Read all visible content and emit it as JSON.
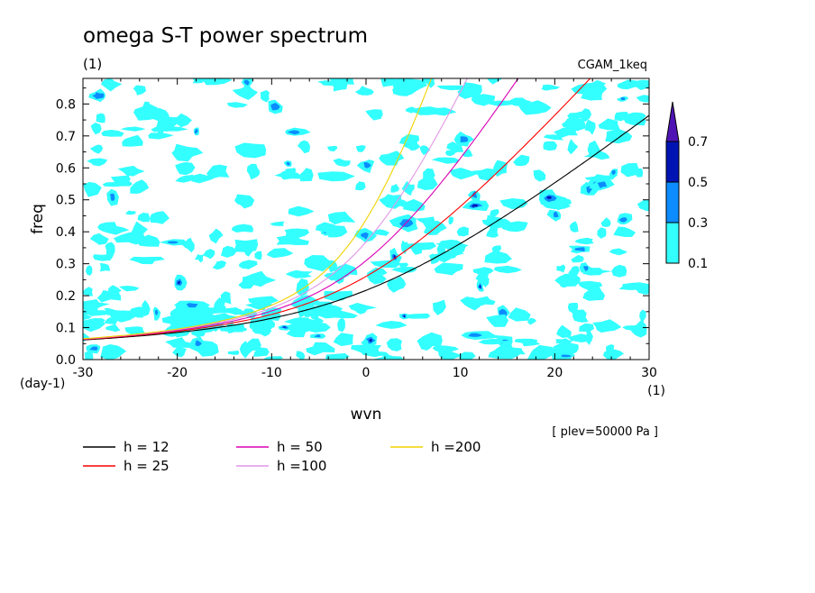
{
  "chart_data": {
    "type": "contour",
    "title": "omega S-T power spectrum",
    "subtitle": "(1)",
    "run_label": "CGAM_1keq",
    "xlabel": "wvn",
    "ylabel": "freq",
    "x_unit": "(1)",
    "y_unit": "(day-1)",
    "xlim": [
      -30,
      30
    ],
    "ylim": [
      0,
      0.88
    ],
    "x_ticks": [
      -30,
      -20,
      -10,
      0,
      10,
      20,
      30
    ],
    "x_tick_labels": [
      "-30",
      "-20",
      "-10",
      "0",
      "10",
      "20",
      "30"
    ],
    "y_ticks": [
      0,
      0.1,
      0.2,
      0.3,
      0.4,
      0.5,
      0.6,
      0.7,
      0.8
    ],
    "y_tick_labels": [
      "0.0",
      "0.1",
      "0.2",
      "0.3",
      "0.4",
      "0.5",
      "0.6",
      "0.7",
      "0.8"
    ],
    "annotation": "[ plev=50000 Pa ]",
    "colorbar": {
      "levels": [
        0.1,
        0.3,
        0.5,
        0.7
      ],
      "level_labels": [
        "0.1",
        "0.3",
        "0.5",
        "0.7"
      ],
      "colors": [
        "#33ffff",
        "#0c8cff",
        "#0014b4",
        "#5014b4"
      ]
    },
    "series": [
      {
        "name": "h = 12",
        "h": 12,
        "color": "#000000"
      },
      {
        "name": "h = 25",
        "h": 25,
        "color": "#ff0000"
      },
      {
        "name": "h = 50",
        "h": 50,
        "color": "#dc00b4"
      },
      {
        "name": "h =100",
        "h": 100,
        "color": "#e196e6"
      },
      {
        "name": "h =200",
        "h": 200,
        "color": "#f0d200"
      }
    ]
  }
}
